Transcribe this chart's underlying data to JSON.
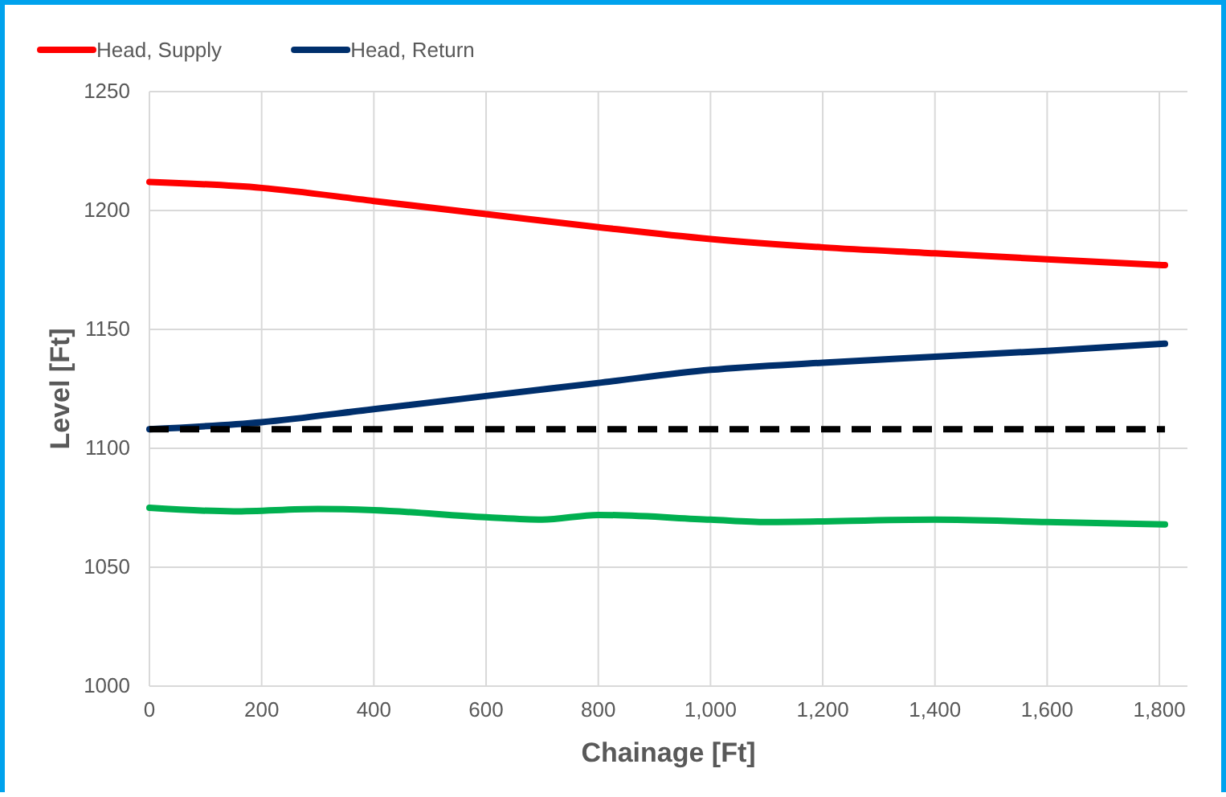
{
  "chart_data": {
    "type": "line",
    "xlabel": "Chainage [Ft]",
    "ylabel": "Level [Ft]",
    "xlim": [
      0,
      1850
    ],
    "xticks": [
      0,
      200,
      400,
      600,
      800,
      {
        "value": 1000,
        "label": "1,000"
      },
      {
        "value": 1200,
        "label": "1,200"
      },
      {
        "value": 1400,
        "label": "1,400"
      },
      {
        "value": 1600,
        "label": "1,600"
      },
      {
        "value": 1800,
        "label": "1,800"
      }
    ],
    "ylim": [
      1000,
      1250
    ],
    "yticks": [
      1000,
      1050,
      1100,
      1150,
      1200,
      1250
    ],
    "grid": true,
    "legend": "top left",
    "marker": "none",
    "series": [
      {
        "name": "Head, Supply",
        "color": "#ff0000",
        "x": [
          0,
          200,
          400,
          600,
          800,
          1000,
          1200,
          1400,
          1600,
          1810
        ],
        "values": [
          1212,
          1209.5,
          1204,
          1198.5,
          1193,
          1188,
          1184.5,
          1182,
          1179.5,
          1177
        ]
      },
      {
        "name": "Head, Return",
        "color": "#002f6c",
        "x": [
          0,
          200,
          400,
          600,
          800,
          1000,
          1200,
          1400,
          1600,
          1810
        ],
        "values": [
          1108,
          1111,
          1116.5,
          1122,
          1127.5,
          1133,
          1136,
          1138.5,
          1141,
          1144
        ]
      },
      {
        "color": "#00b050",
        "x": [
          0,
          150,
          300,
          400,
          600,
          700,
          800,
          1000,
          1100,
          1400,
          1600,
          1810
        ],
        "values": [
          1075,
          1073.5,
          1074.5,
          1074,
          1071,
          1070,
          1072,
          1070,
          1069,
          1070,
          1069,
          1068
        ]
      },
      {
        "color": "#000000",
        "line_style": "dashed",
        "x": [
          0,
          1810
        ],
        "values": [
          1108,
          1108
        ]
      }
    ]
  }
}
